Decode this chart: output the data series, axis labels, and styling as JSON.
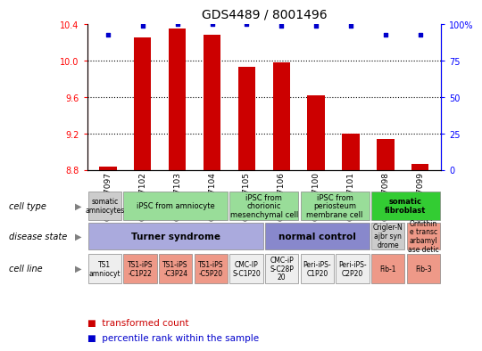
{
  "title": "GDS4489 / 8001496",
  "samples": [
    "GSM807097",
    "GSM807102",
    "GSM807103",
    "GSM807104",
    "GSM807105",
    "GSM807106",
    "GSM807100",
    "GSM807101",
    "GSM807098",
    "GSM807099"
  ],
  "bar_values": [
    8.84,
    10.25,
    10.35,
    10.28,
    9.93,
    9.98,
    9.62,
    9.2,
    9.14,
    8.86
  ],
  "bar_base": 8.8,
  "blue_values": [
    93,
    99,
    100,
    100,
    100,
    99,
    99,
    99,
    93,
    93
  ],
  "ylim_left": [
    8.8,
    10.4
  ],
  "ylim_right": [
    0,
    100
  ],
  "yticks_left": [
    8.8,
    9.2,
    9.6,
    10.0,
    10.4
  ],
  "yticks_right": [
    0,
    25,
    50,
    75,
    100
  ],
  "bar_color": "#cc0000",
  "dot_color": "#0000cc",
  "cell_type_groups": [
    {
      "label": "somatic\namniocytes",
      "span": [
        0,
        1
      ],
      "color": "#cccccc"
    },
    {
      "label": "iPSC from amniocyte",
      "span": [
        1,
        4
      ],
      "color": "#99dd99"
    },
    {
      "label": "iPSC from\nchorionic\nmesenchymal cell",
      "span": [
        4,
        6
      ],
      "color": "#99dd99"
    },
    {
      "label": "iPSC from\nperiosteum\nmembrane cell",
      "span": [
        6,
        8
      ],
      "color": "#99dd99"
    },
    {
      "label": "somatic\nfibroblast",
      "span": [
        8,
        10
      ],
      "color": "#33cc33"
    }
  ],
  "disease_state_groups": [
    {
      "label": "Turner syndrome",
      "span": [
        0,
        5
      ],
      "color": "#aaaadd"
    },
    {
      "label": "normal control",
      "span": [
        5,
        8
      ],
      "color": "#8888cc"
    },
    {
      "label": "Crigler-N\najbr syn\ndrome",
      "span": [
        8,
        9
      ],
      "color": "#cccccc"
    },
    {
      "label": "Ornithin\ne transc\narbamyl\nase detic",
      "span": [
        9,
        10
      ],
      "color": "#ee9988"
    }
  ],
  "cell_line_groups": [
    {
      "label": "TS1\namniocyt",
      "span": [
        0,
        1
      ],
      "color": "#eeeeee"
    },
    {
      "label": "TS1-iPS\n-C1P22",
      "span": [
        1,
        2
      ],
      "color": "#ee9988"
    },
    {
      "label": "TS1-iPS\n-C3P24",
      "span": [
        2,
        3
      ],
      "color": "#ee9988"
    },
    {
      "label": "TS1-iPS\n-C5P20",
      "span": [
        3,
        4
      ],
      "color": "#ee9988"
    },
    {
      "label": "CMC-IP\nS-C1P20",
      "span": [
        4,
        5
      ],
      "color": "#eeeeee"
    },
    {
      "label": "CMC-iP\nS-C28P\n20",
      "span": [
        5,
        6
      ],
      "color": "#eeeeee"
    },
    {
      "label": "Peri-iPS-\nC1P20",
      "span": [
        6,
        7
      ],
      "color": "#eeeeee"
    },
    {
      "label": "Peri-iPS-\nC2P20",
      "span": [
        7,
        8
      ],
      "color": "#eeeeee"
    },
    {
      "label": "Fib-1",
      "span": [
        8,
        9
      ],
      "color": "#ee9988"
    },
    {
      "label": "Fib-3",
      "span": [
        9,
        10
      ],
      "color": "#ee9988"
    }
  ],
  "row_labels": [
    "cell type",
    "disease state",
    "cell line"
  ],
  "legend_bar_label": "transformed count",
  "legend_dot_label": "percentile rank within the sample"
}
